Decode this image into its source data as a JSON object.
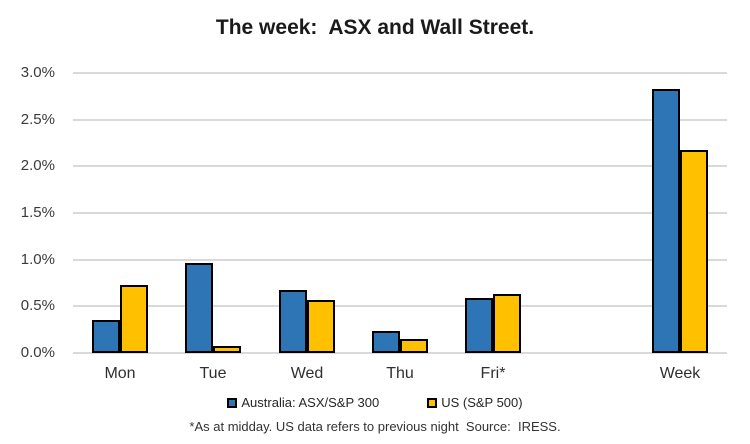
{
  "chart_data": {
    "type": "bar",
    "title": "The week:  ASX and Wall Street.",
    "categories": [
      "Mon",
      "Tue",
      "Wed",
      "Thu",
      "Fri*",
      "Week"
    ],
    "category_slots": [
      0,
      1,
      2,
      3,
      4,
      6
    ],
    "total_slots": 7,
    "series": [
      {
        "name": "Australia: ASX/S&P 300",
        "color": "#2E75B6",
        "values": [
          0.35,
          0.96,
          0.67,
          0.24,
          0.59,
          2.83
        ]
      },
      {
        "name": "US (S&P 500)",
        "color": "#FFC000",
        "values": [
          0.73,
          0.07,
          0.57,
          0.15,
          0.63,
          2.18
        ]
      }
    ],
    "xlabel": "",
    "ylabel": "",
    "ylim": [
      0,
      3.0
    ],
    "ytick_step": 0.5,
    "ytick_labels": [
      "0.0%",
      "0.5%",
      "1.0%",
      "1.5%",
      "2.0%",
      "2.5%",
      "3.0%"
    ],
    "grid": true,
    "legend_position": "bottom",
    "gridline_color": "#D9D9D9",
    "bar_border_color": "#000000"
  },
  "footnote": "*As at midday. US data refers to previous night  Source:  IRESS."
}
